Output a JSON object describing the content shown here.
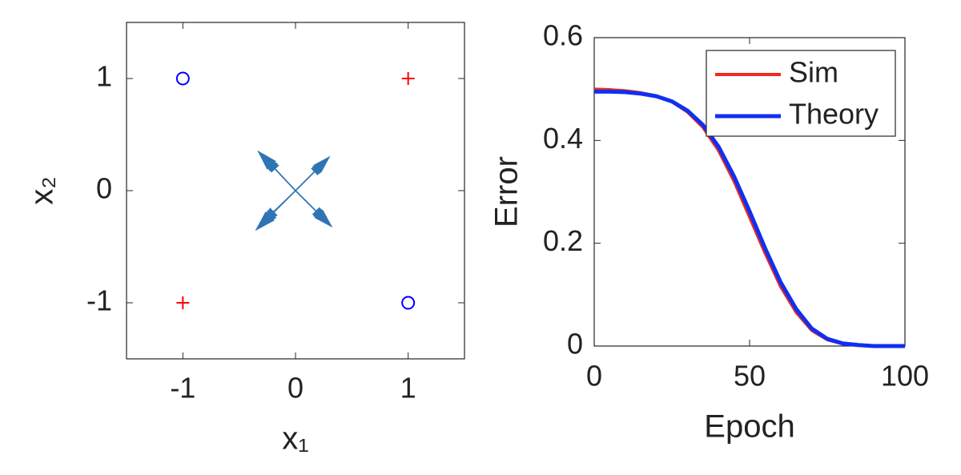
{
  "chart_data": [
    {
      "type": "scatter",
      "xlabel": "x₁",
      "ylabel": "x₂",
      "xlim": [
        -1.5,
        1.5
      ],
      "ylim": [
        -1.5,
        1.5
      ],
      "xticks": [
        -1,
        0,
        1
      ],
      "yticks": [
        -1,
        0,
        1
      ],
      "series": [
        {
          "marker": "o",
          "color": "#0000ff",
          "x": [
            -1,
            1
          ],
          "y": [
            1,
            -1
          ]
        },
        {
          "marker": "+",
          "color": "#ff0000",
          "x": [
            1,
            -1
          ],
          "y": [
            1,
            -1
          ]
        }
      ],
      "quiver": {
        "color": "#2f74b5",
        "u": [
          -0.33,
          -0.3,
          -0.28,
          0.3,
          0.28,
          0.26,
          -0.35,
          -0.32,
          -0.3,
          0.32,
          0.3,
          0.28
        ],
        "v": [
          0.35,
          0.32,
          0.3,
          0.3,
          0.28,
          0.26,
          -0.35,
          -0.32,
          -0.29,
          -0.32,
          -0.3,
          -0.28
        ]
      }
    },
    {
      "type": "line",
      "xlabel": "Epoch",
      "ylabel": "Error",
      "xlim": [
        0,
        100
      ],
      "ylim": [
        0,
        0.6
      ],
      "xticks": [
        0,
        50,
        100
      ],
      "yticks": [
        0,
        0.2,
        0.4,
        0.6
      ],
      "legend": "northeast",
      "x": [
        0,
        5,
        10,
        15,
        20,
        25,
        30,
        35,
        40,
        45,
        50,
        55,
        60,
        65,
        70,
        75,
        80,
        85,
        90,
        95,
        100
      ],
      "series": [
        {
          "name": "Sim",
          "color": "#ee2a1b",
          "values": [
            0.5,
            0.499,
            0.497,
            0.493,
            0.487,
            0.475,
            0.455,
            0.425,
            0.38,
            0.32,
            0.25,
            0.18,
            0.115,
            0.065,
            0.03,
            0.012,
            0.004,
            0.001,
            0,
            0,
            0
          ]
        },
        {
          "name": "Theory",
          "color": "#1030f0",
          "values": [
            0.495,
            0.495,
            0.494,
            0.491,
            0.486,
            0.476,
            0.458,
            0.43,
            0.388,
            0.33,
            0.262,
            0.19,
            0.124,
            0.072,
            0.034,
            0.014,
            0.005,
            0.002,
            0,
            0,
            0
          ]
        }
      ]
    }
  ]
}
